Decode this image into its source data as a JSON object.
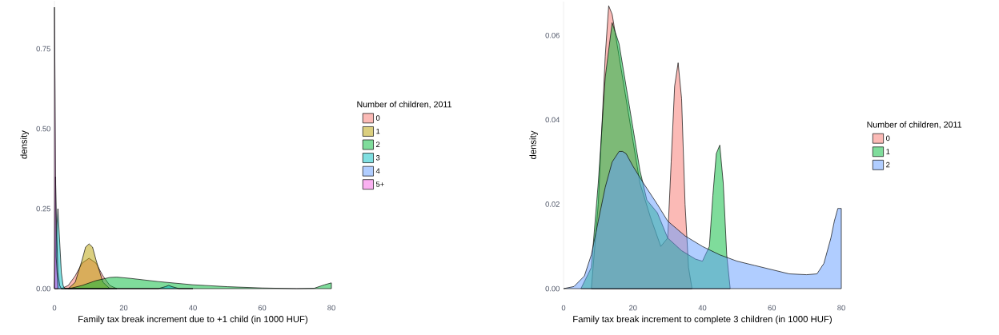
{
  "chart_data": [
    {
      "type": "area",
      "xlabel": "Family tax break increment due to +1 child (in 1000 HUF)",
      "ylabel": "density",
      "legend_title": "Number of children, 2011",
      "legend": "right",
      "xlim": [
        0,
        80
      ],
      "ylim": [
        0,
        0.9
      ],
      "xticks": [
        0,
        20,
        40,
        60,
        80
      ],
      "yticks": [
        {
          "value": 0,
          "label": "0.00"
        },
        {
          "value": 0.25,
          "label": "0.25"
        },
        {
          "value": 0.5,
          "label": "0.50"
        },
        {
          "value": 0.75,
          "label": "0.75"
        }
      ],
      "series": [
        {
          "name": "0",
          "color": "#f8766d",
          "x": [
            2,
            4,
            6,
            8,
            10,
            12,
            14,
            16,
            18
          ],
          "values": [
            0,
            0.01,
            0.04,
            0.08,
            0.095,
            0.08,
            0.04,
            0.01,
            0
          ]
        },
        {
          "name": "1",
          "color": "#b79f00",
          "x": [
            4,
            6,
            8,
            9,
            10,
            11,
            12,
            14,
            16
          ],
          "values": [
            0,
            0.02,
            0.09,
            0.13,
            0.14,
            0.13,
            0.09,
            0.02,
            0
          ]
        },
        {
          "name": "2",
          "color": "#00ba38",
          "x": [
            2,
            5,
            8,
            12,
            16,
            18,
            22,
            30,
            40,
            50,
            60,
            70,
            75,
            78,
            80
          ],
          "values": [
            0,
            0.002,
            0.01,
            0.025,
            0.035,
            0.036,
            0.032,
            0.022,
            0.012,
            0.006,
            0.002,
            0,
            0.001,
            0.012,
            0.018
          ]
        },
        {
          "name": "3",
          "color": "#00bfc4",
          "x": [
            0,
            0.5,
            1,
            1.5,
            2,
            2.5,
            3,
            20,
            30,
            32,
            33,
            34,
            36,
            40
          ],
          "values": [
            0,
            0.15,
            0.25,
            0.15,
            0.05,
            0.01,
            0,
            0,
            0,
            0.006,
            0.01,
            0.006,
            0,
            0
          ]
        },
        {
          "name": "4",
          "color": "#619cff",
          "x": [
            0,
            0.3,
            0.6,
            1,
            1.5,
            2
          ],
          "values": [
            0,
            0.35,
            0.2,
            0.05,
            0.01,
            0
          ]
        },
        {
          "name": "5+",
          "color": "#f564e3",
          "x": [
            0,
            0.2,
            0.5,
            1
          ],
          "values": [
            0.88,
            0.6,
            0.1,
            0
          ]
        }
      ]
    },
    {
      "type": "area",
      "xlabel": "Family tax break increment to complete 3 children (in 1000 HUF)",
      "ylabel": "density",
      "legend_title": "Number of children, 2011",
      "legend": "right",
      "xlim": [
        0,
        80
      ],
      "ylim": [
        0,
        0.068
      ],
      "xticks": [
        0,
        20,
        40,
        60,
        80
      ],
      "yticks": [
        {
          "value": 0,
          "label": "0.00"
        },
        {
          "value": 0.02,
          "label": "0.02"
        },
        {
          "value": 0.04,
          "label": "0.04"
        },
        {
          "value": 0.06,
          "label": "0.06"
        }
      ],
      "series": [
        {
          "name": "0",
          "color": "#f8766d",
          "x": [
            8,
            10,
            12,
            13,
            14,
            16,
            18,
            20,
            22,
            25,
            28,
            30,
            31,
            32,
            33,
            34,
            35,
            36,
            37
          ],
          "values": [
            0,
            0.02,
            0.055,
            0.067,
            0.065,
            0.055,
            0.045,
            0.035,
            0.025,
            0.017,
            0.01,
            0.012,
            0.03,
            0.048,
            0.0535,
            0.045,
            0.02,
            0.005,
            0
          ]
        },
        {
          "name": "1",
          "color": "#00ba38",
          "x": [
            5,
            8,
            10,
            12,
            14,
            16,
            18,
            20,
            22,
            24,
            27,
            30,
            34,
            38,
            40,
            42,
            43,
            44,
            45,
            46,
            47,
            48
          ],
          "values": [
            0,
            0.005,
            0.025,
            0.05,
            0.063,
            0.058,
            0.048,
            0.038,
            0.028,
            0.021,
            0.018,
            0.012,
            0.009,
            0.007,
            0.0065,
            0.01,
            0.022,
            0.032,
            0.034,
            0.025,
            0.008,
            0
          ]
        },
        {
          "name": "2",
          "color": "#619cff",
          "x": [
            0,
            3,
            6,
            8,
            10,
            12,
            14,
            16,
            17,
            18,
            20,
            23,
            27,
            30,
            35,
            40,
            45,
            50,
            55,
            60,
            65,
            70,
            73,
            75,
            77,
            78,
            79,
            80
          ],
          "values": [
            0,
            0.0005,
            0.003,
            0.008,
            0.016,
            0.024,
            0.03,
            0.0325,
            0.0325,
            0.032,
            0.029,
            0.025,
            0.02,
            0.016,
            0.0125,
            0.01,
            0.008,
            0.0065,
            0.0055,
            0.0045,
            0.0035,
            0.0033,
            0.0035,
            0.006,
            0.012,
            0.016,
            0.019,
            0.019
          ]
        }
      ]
    }
  ]
}
